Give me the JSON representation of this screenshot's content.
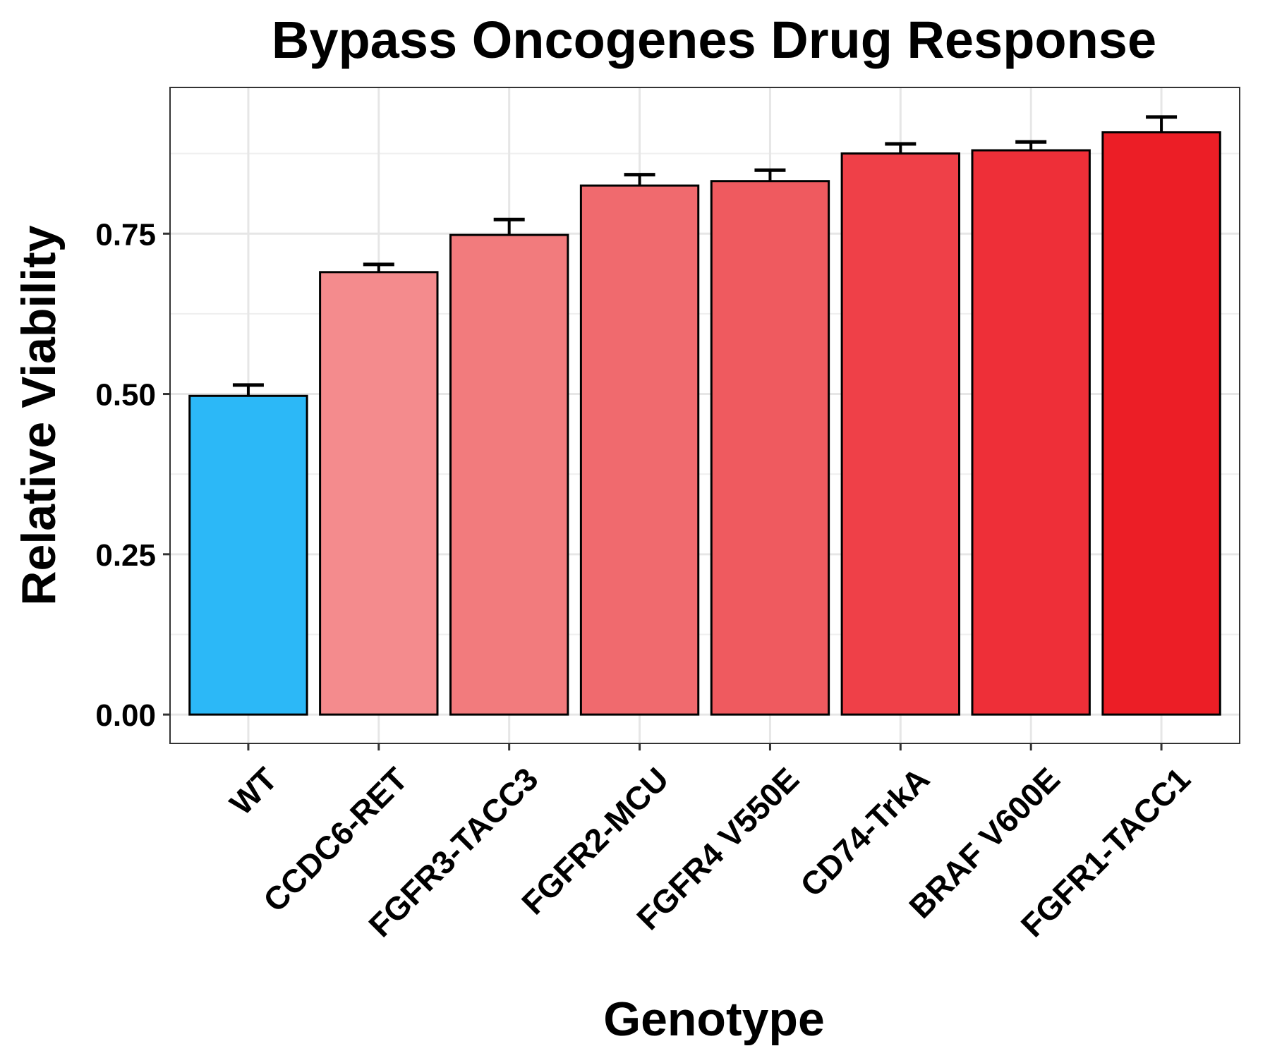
{
  "chart_data": {
    "type": "bar",
    "title": "Bypass Oncogenes Drug Response",
    "xlabel": "Genotype",
    "ylabel": "Relative Viability",
    "categories": [
      "WT",
      "CCDC6-RET",
      "FGFR3-TACC3",
      "FGFR2-MCU",
      "FGFR4 V550E",
      "CD74-TrkA",
      "BRAF V600E",
      "FGFR1-TACC1"
    ],
    "values": [
      0.497,
      0.69,
      0.748,
      0.825,
      0.832,
      0.875,
      0.88,
      0.908
    ],
    "error_upper": [
      0.514,
      0.702,
      0.772,
      0.842,
      0.849,
      0.89,
      0.893,
      0.932
    ],
    "colors": [
      "#2cb8f7",
      "#f48b8d",
      "#f27b7d",
      "#f06a6e",
      "#ef5a5f",
      "#ef4048",
      "#ee2f38",
      "#ec1e26"
    ],
    "ylim": [
      -0.045,
      0.978
    ],
    "yticks": [
      0.0,
      0.25,
      0.5,
      0.75
    ],
    "ytick_labels": [
      "0.00",
      "0.25",
      "0.50",
      "0.75"
    ],
    "grid": true,
    "legend": "none"
  }
}
